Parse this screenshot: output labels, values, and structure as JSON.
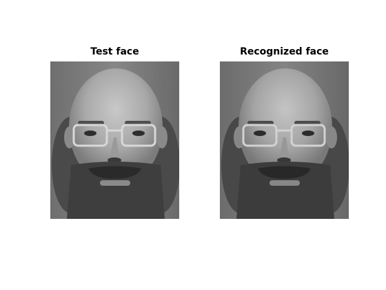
{
  "figure": {
    "background": "#ffffff"
  },
  "panels": [
    {
      "title": "Test face",
      "image_name": "face-photo",
      "colormap": "gray"
    },
    {
      "title": "Recognized face",
      "image_name": "face-photo",
      "colormap": "gray"
    }
  ]
}
